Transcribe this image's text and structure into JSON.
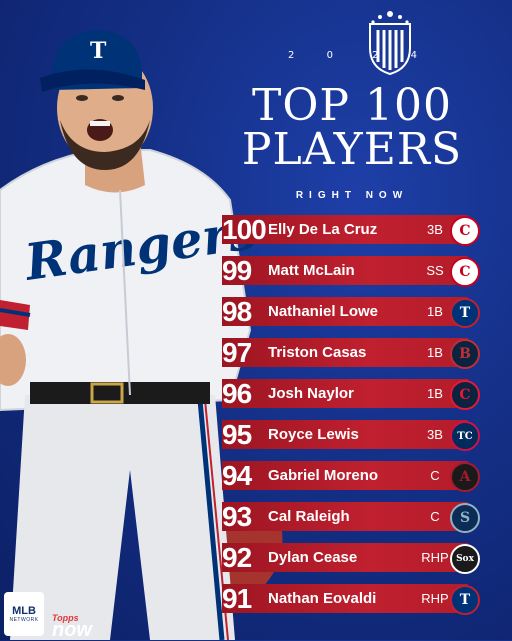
{
  "header": {
    "year_left": "2",
    "year_left2": "0",
    "year_right": "2",
    "year_right2": "4",
    "title_line1": "TOP 100",
    "title_line2": "PLAYERS",
    "subtitle": "RIGHT NOW"
  },
  "players": [
    {
      "rank": "100",
      "name": "Elly De La Cruz",
      "position": "3B",
      "team_icon": "reds-logo",
      "logo_letter": "C",
      "logo_bg": "#ffffff",
      "logo_fg": "#c6011f"
    },
    {
      "rank": "99",
      "name": "Matt McLain",
      "position": "SS",
      "team_icon": "reds-logo",
      "logo_letter": "C",
      "logo_bg": "#ffffff",
      "logo_fg": "#c6011f"
    },
    {
      "rank": "98",
      "name": "Nathaniel Lowe",
      "position": "1B",
      "team_icon": "rangers-logo",
      "logo_letter": "T",
      "logo_bg": "#003278",
      "logo_fg": "#ffffff"
    },
    {
      "rank": "97",
      "name": "Triston Casas",
      "position": "1B",
      "team_icon": "red-sox-logo",
      "logo_letter": "B",
      "logo_bg": "#0c2340",
      "logo_fg": "#bd3039"
    },
    {
      "rank": "96",
      "name": "Josh Naylor",
      "position": "1B",
      "team_icon": "guardians-logo",
      "logo_letter": "C",
      "logo_bg": "#0c2340",
      "logo_fg": "#e31937"
    },
    {
      "rank": "95",
      "name": "Royce Lewis",
      "position": "3B",
      "team_icon": "twins-logo",
      "logo_letter": "TC",
      "logo_bg": "#002b5c",
      "logo_fg": "#ffffff"
    },
    {
      "rank": "94",
      "name": "Gabriel Moreno",
      "position": "C",
      "team_icon": "diamondbacks-logo",
      "logo_letter": "A",
      "logo_bg": "#1a1a1a",
      "logo_fg": "#a71930"
    },
    {
      "rank": "93",
      "name": "Cal Raleigh",
      "position": "C",
      "team_icon": "mariners-logo",
      "logo_letter": "S",
      "logo_bg": "#0c2c56",
      "logo_fg": "#8fb3c4"
    },
    {
      "rank": "92",
      "name": "Dylan Cease",
      "position": "RHP",
      "team_icon": "white-sox-logo",
      "logo_letter": "Sox",
      "logo_bg": "#1a1a1a",
      "logo_fg": "#ffffff"
    },
    {
      "rank": "91",
      "name": "Nathan Eovaldi",
      "position": "RHP",
      "team_icon": "rangers-logo",
      "logo_letter": "T",
      "logo_bg": "#003278",
      "logo_fg": "#ffffff"
    }
  ],
  "player_photo": {
    "jersey_text": "Rangers",
    "cap_letter": "T"
  },
  "footer": {
    "network_line1": "MLB",
    "network_line2": "NETWORK",
    "topps_line1": "Topps",
    "topps_line2": "now"
  },
  "colors": {
    "background": "#142f86",
    "bar_red": "#c0202f"
  }
}
